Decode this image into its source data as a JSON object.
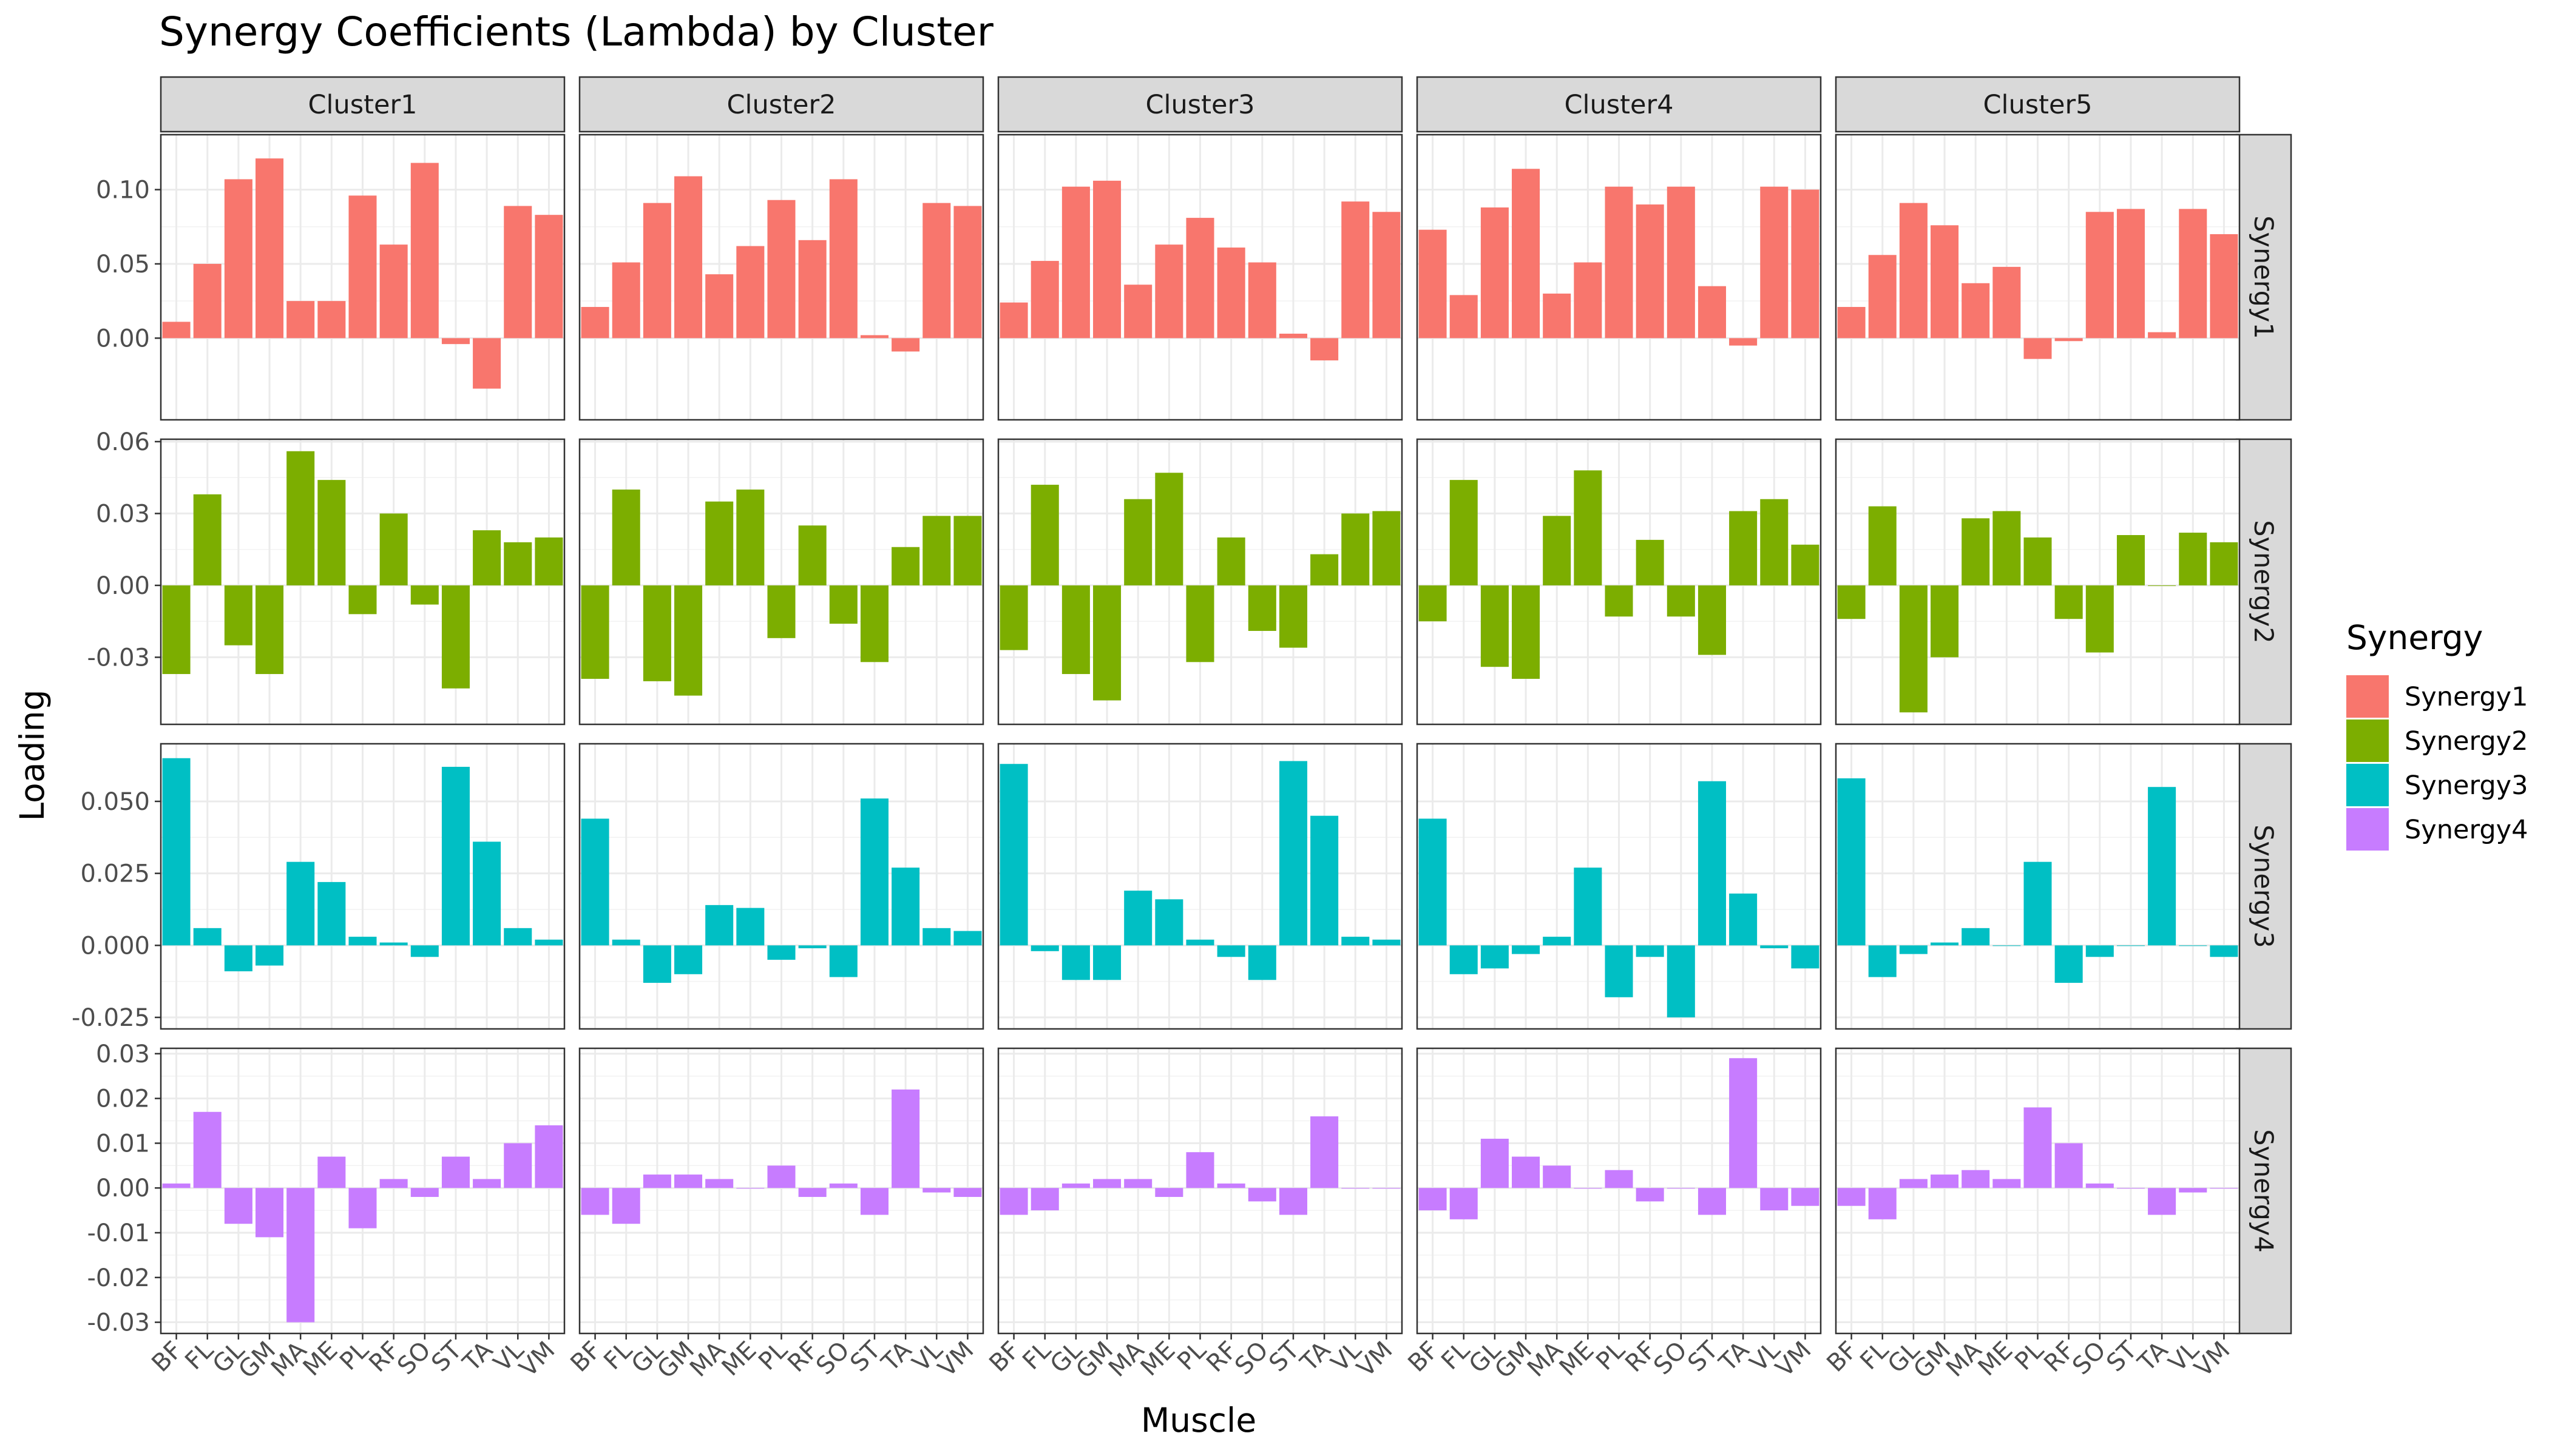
{
  "chart_data": {
    "type": "bar",
    "title": "Synergy Coefficients (Lambda) by Cluster",
    "xlabel": "Muscle",
    "ylabel": "Loading",
    "facet_columns": [
      "Cluster1",
      "Cluster2",
      "Cluster3",
      "Cluster4",
      "Cluster5"
    ],
    "facet_rows": [
      "Synergy1",
      "Synergy2",
      "Synergy3",
      "Synergy4"
    ],
    "categories": [
      "BF",
      "FL",
      "GL",
      "GM",
      "MA",
      "ME",
      "PL",
      "RF",
      "SO",
      "ST",
      "TA",
      "VL",
      "VM"
    ],
    "grid": true,
    "legend": {
      "title": "Synergy",
      "position": "right",
      "entries": [
        {
          "label": "Synergy1",
          "color": "#F8766D"
        },
        {
          "label": "Synergy2",
          "color": "#7CAE00"
        },
        {
          "label": "Synergy3",
          "color": "#00BFC4"
        },
        {
          "label": "Synergy4",
          "color": "#C77CFF"
        }
      ]
    },
    "row_axes": [
      {
        "ylim": [
          -0.055,
          0.137
        ],
        "ticks": [
          0.0,
          0.05,
          0.1
        ],
        "tick_labels": [
          "0.00",
          "0.05",
          "0.10"
        ]
      },
      {
        "ylim": [
          -0.058,
          0.061
        ],
        "ticks": [
          -0.03,
          0.0,
          0.03,
          0.06
        ],
        "tick_labels": [
          "-0.03",
          "0.00",
          "0.03",
          "0.06"
        ]
      },
      {
        "ylim": [
          -0.029,
          0.07
        ],
        "ticks": [
          -0.025,
          0.0,
          0.025,
          0.05
        ],
        "tick_labels": [
          "-0.025",
          "0.000",
          "0.025",
          "0.050"
        ]
      },
      {
        "ylim": [
          -0.0325,
          0.0312
        ],
        "ticks": [
          -0.03,
          -0.02,
          -0.01,
          0.0,
          0.01,
          0.02,
          0.03
        ],
        "tick_labels": [
          "-0.03",
          "-0.02",
          "-0.01",
          "0.00",
          "0.01",
          "0.02",
          "0.03"
        ]
      }
    ],
    "values": {
      "Synergy1": {
        "Cluster1": [
          0.011,
          0.05,
          0.107,
          0.121,
          0.025,
          0.025,
          0.096,
          0.063,
          0.118,
          -0.004,
          -0.034,
          0.089,
          0.083
        ],
        "Cluster2": [
          0.021,
          0.051,
          0.091,
          0.109,
          0.043,
          0.062,
          0.093,
          0.066,
          0.107,
          0.002,
          -0.009,
          0.091,
          0.089
        ],
        "Cluster3": [
          0.024,
          0.052,
          0.102,
          0.106,
          0.036,
          0.063,
          0.081,
          0.061,
          0.051,
          0.003,
          -0.015,
          0.092,
          0.085
        ],
        "Cluster4": [
          0.073,
          0.029,
          0.088,
          0.114,
          0.03,
          0.051,
          0.102,
          0.09,
          0.102,
          0.035,
          -0.005,
          0.102,
          0.1
        ],
        "Cluster5": [
          0.021,
          0.056,
          0.091,
          0.076,
          0.037,
          0.048,
          -0.014,
          -0.002,
          0.085,
          0.087,
          0.004,
          0.087,
          0.07
        ]
      },
      "Synergy2": {
        "Cluster1": [
          -0.037,
          0.038,
          -0.025,
          -0.037,
          0.056,
          0.044,
          -0.012,
          0.03,
          -0.008,
          -0.043,
          0.023,
          0.018,
          0.02
        ],
        "Cluster2": [
          -0.039,
          0.04,
          -0.04,
          -0.046,
          0.035,
          0.04,
          -0.022,
          0.025,
          -0.016,
          -0.032,
          0.016,
          0.029,
          0.029
        ],
        "Cluster3": [
          -0.027,
          0.042,
          -0.037,
          -0.048,
          0.036,
          0.047,
          -0.032,
          0.02,
          -0.019,
          -0.026,
          0.013,
          0.03,
          0.031
        ],
        "Cluster4": [
          -0.015,
          0.044,
          -0.034,
          -0.039,
          0.029,
          0.048,
          -0.013,
          0.019,
          -0.013,
          -0.029,
          0.031,
          0.036,
          0.017
        ],
        "Cluster5": [
          -0.014,
          0.033,
          -0.053,
          -0.03,
          0.028,
          0.031,
          0.02,
          -0.014,
          -0.028,
          0.021,
          0.0,
          0.022,
          0.018
        ]
      },
      "Synergy3": {
        "Cluster1": [
          0.065,
          0.006,
          -0.009,
          -0.007,
          0.029,
          0.022,
          0.003,
          0.001,
          -0.004,
          0.062,
          0.036,
          0.006,
          0.002
        ],
        "Cluster2": [
          0.044,
          0.002,
          -0.013,
          -0.01,
          0.014,
          0.013,
          -0.005,
          -0.001,
          -0.011,
          0.051,
          0.027,
          0.006,
          0.005
        ],
        "Cluster3": [
          0.063,
          -0.002,
          -0.012,
          -0.012,
          0.019,
          0.016,
          0.002,
          -0.004,
          -0.012,
          0.064,
          0.045,
          0.003,
          0.002
        ],
        "Cluster4": [
          0.044,
          -0.01,
          -0.008,
          -0.003,
          0.003,
          0.027,
          -0.018,
          -0.004,
          -0.025,
          0.057,
          0.018,
          -0.001,
          -0.008
        ],
        "Cluster5": [
          0.058,
          -0.011,
          -0.003,
          0.001,
          0.006,
          0.0,
          0.029,
          -0.013,
          -0.004,
          0.0,
          0.055,
          0.0,
          -0.004
        ]
      },
      "Synergy4": {
        "Cluster1": [
          0.001,
          0.017,
          -0.008,
          -0.011,
          -0.03,
          0.007,
          -0.009,
          0.002,
          -0.002,
          0.007,
          0.002,
          0.01,
          0.014
        ],
        "Cluster2": [
          -0.006,
          -0.008,
          0.003,
          0.003,
          0.002,
          0.0,
          0.005,
          -0.002,
          0.001,
          -0.006,
          0.022,
          -0.001,
          -0.002
        ],
        "Cluster3": [
          -0.006,
          -0.005,
          0.001,
          0.002,
          0.002,
          -0.002,
          0.008,
          0.001,
          -0.003,
          -0.006,
          0.016,
          0.0,
          0.0
        ],
        "Cluster4": [
          -0.005,
          -0.007,
          0.011,
          0.007,
          0.005,
          0.0,
          0.004,
          -0.003,
          0.0,
          -0.006,
          0.029,
          -0.005,
          -0.004
        ],
        "Cluster5": [
          -0.004,
          -0.007,
          0.002,
          0.003,
          0.004,
          0.002,
          0.018,
          0.01,
          0.001,
          0.0,
          -0.006,
          -0.001,
          0.0
        ]
      }
    }
  }
}
